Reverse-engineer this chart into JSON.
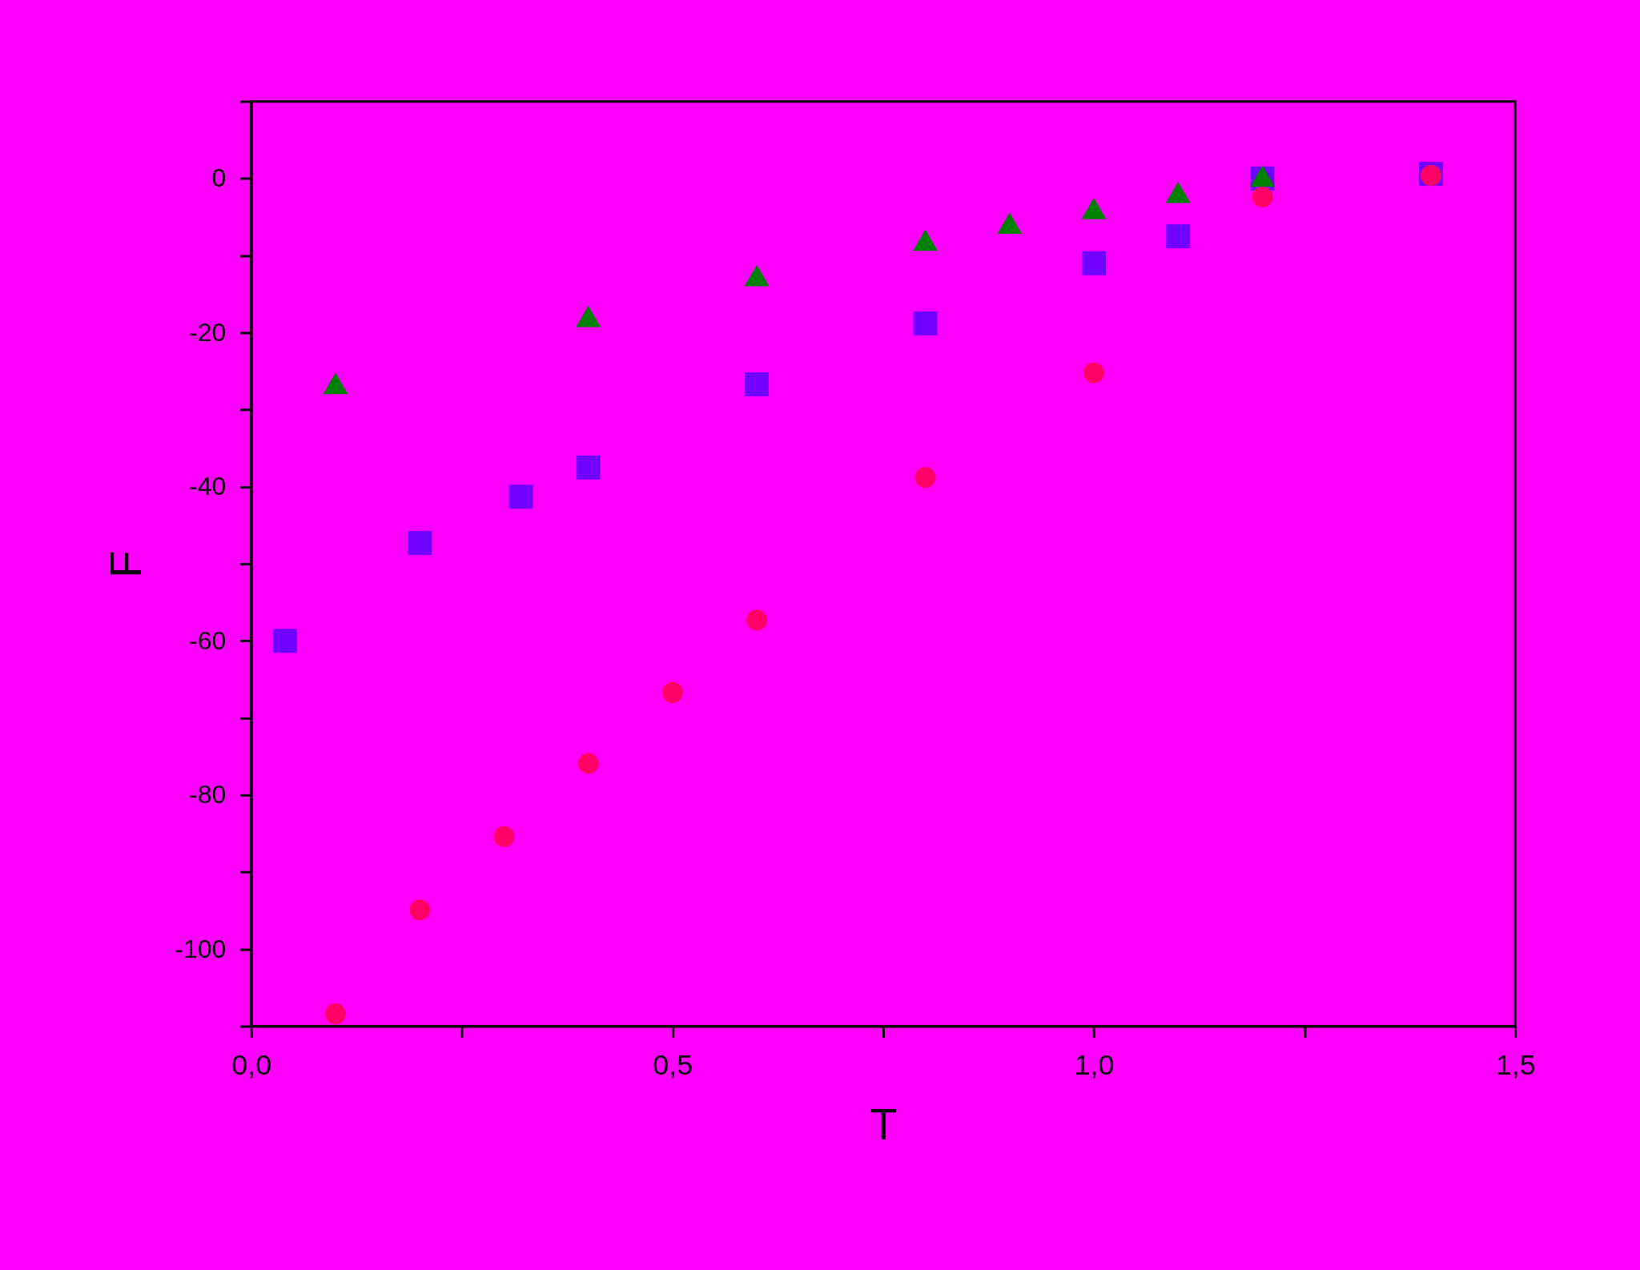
{
  "chart_data": {
    "type": "scatter",
    "xlabel": "T",
    "ylabel": "F",
    "xlim": [
      0,
      1.5
    ],
    "ylim": [
      -110,
      10
    ],
    "xticks": [
      {
        "value": 0,
        "label": "0,0"
      },
      {
        "value": 0.25,
        "label": null
      },
      {
        "value": 0.5,
        "label": "0,5"
      },
      {
        "value": 0.75,
        "label": null
      },
      {
        "value": 1.0,
        "label": "1,0"
      },
      {
        "value": 1.25,
        "label": null
      },
      {
        "value": 1.5,
        "label": "1,5"
      }
    ],
    "yticks": [
      {
        "value": 10,
        "label": null
      },
      0,
      {
        "value": -10,
        "label": null
      },
      -20,
      {
        "value": -30,
        "label": null
      },
      -40,
      {
        "value": -50,
        "label": null
      },
      -60,
      {
        "value": -70,
        "label": null
      },
      -80,
      {
        "value": -90,
        "label": null
      },
      -100,
      {
        "value": -110,
        "label": null
      }
    ],
    "grid": false,
    "series": [
      {
        "color": "#7000ff",
        "marker": "square",
        "x": [
          0.04,
          0.2,
          0.32,
          0.4,
          0.6,
          0.8,
          1.0,
          1.1,
          1.2,
          1.4
        ],
        "values": [
          -60,
          -47.3,
          -41.3,
          -37.5,
          -26.7,
          -18.8,
          -11,
          -7.5,
          0,
          0.6
        ]
      },
      {
        "color": "#ff0066",
        "marker": "circle",
        "x": [
          0.1,
          0.2,
          0.3,
          0.4,
          0.5,
          0.6,
          0.8,
          1.0,
          1.2,
          1.4
        ],
        "values": [
          -108.4,
          -94.9,
          -85.4,
          -75.9,
          -66.7,
          -57.3,
          -38.8,
          -25.2,
          -2.4,
          0.4
        ]
      },
      {
        "color": "#008000",
        "marker": "triangle",
        "x": [
          0.1,
          0.4,
          0.6,
          0.8,
          0.9,
          1.0,
          1.1,
          1.2
        ],
        "values": [
          -26.6,
          -17.9,
          -12.6,
          -8,
          -5.8,
          -3.9,
          -1.8,
          0.3
        ]
      }
    ]
  }
}
